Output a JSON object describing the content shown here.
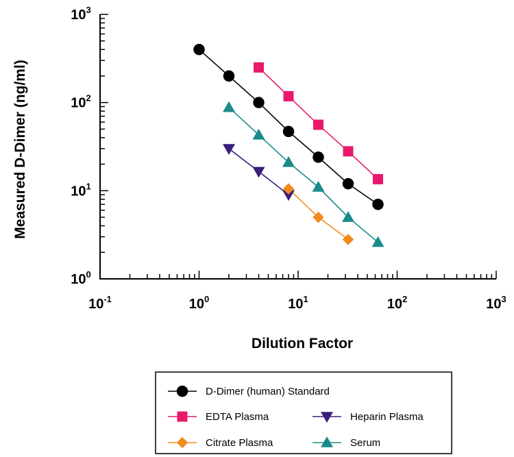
{
  "chart_data": {
    "type": "scatter",
    "title": "",
    "xlabel": "Dilution Factor",
    "ylabel": "Measured D-Dimer (ng/ml)",
    "xscale": "log",
    "yscale": "log",
    "xlim": [
      0.1,
      1000
    ],
    "ylim": [
      1,
      1000
    ],
    "x_ticks": [
      {
        "base": "10",
        "exp": "-1",
        "value": 0.1
      },
      {
        "base": "10",
        "exp": "0",
        "value": 1
      },
      {
        "base": "10",
        "exp": "1",
        "value": 10
      },
      {
        "base": "10",
        "exp": "2",
        "value": 100
      },
      {
        "base": "10",
        "exp": "3",
        "value": 1000
      }
    ],
    "y_ticks": [
      {
        "base": "10",
        "exp": "0",
        "value": 1
      },
      {
        "base": "10",
        "exp": "1",
        "value": 10
      },
      {
        "base": "10",
        "exp": "2",
        "value": 100
      },
      {
        "base": "10",
        "exp": "3",
        "value": 1000
      }
    ],
    "grid": false,
    "legend_position": "bottom",
    "series": [
      {
        "name": "D-Dimer (human) Standard",
        "marker": "circle",
        "color": "#000000",
        "x": [
          1,
          2,
          4,
          8,
          16,
          32,
          64
        ],
        "y": [
          400,
          200,
          100,
          47,
          24,
          12,
          7
        ]
      },
      {
        "name": "EDTA Plasma",
        "marker": "square",
        "color": "#e8196c",
        "x": [
          4,
          8,
          16,
          32,
          64
        ],
        "y": [
          250,
          118,
          56,
          28,
          13.5
        ]
      },
      {
        "name": "Heparin Plasma",
        "marker": "triangle-down",
        "color": "#3b1e7a",
        "x": [
          2,
          4,
          8
        ],
        "y": [
          30,
          16.5,
          9
        ]
      },
      {
        "name": "Citrate Plasma",
        "marker": "diamond",
        "color": "#f28a1e",
        "x": [
          8,
          16,
          32
        ],
        "y": [
          10.5,
          5,
          2.8
        ]
      },
      {
        "name": "Serum",
        "marker": "triangle-up",
        "color": "#1a8a8a",
        "x": [
          2,
          4,
          8,
          16,
          32,
          64
        ],
        "y": [
          88,
          43,
          21,
          11,
          5,
          2.6
        ]
      }
    ]
  }
}
